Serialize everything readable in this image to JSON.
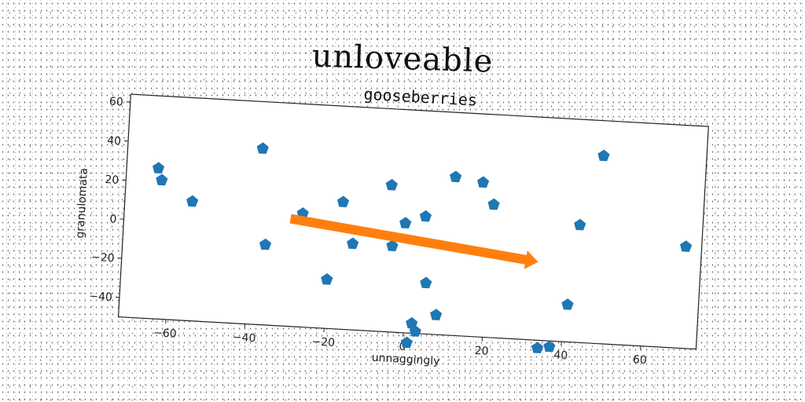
{
  "figure_title": "unloveable",
  "chart_data": {
    "type": "scatter",
    "title": "gooseberries",
    "xlabel": "unnaggingly",
    "ylabel": "granulomata",
    "xlim": [
      -72,
      74
    ],
    "ylim": [
      -50,
      64
    ],
    "xticks": [
      -60,
      -40,
      -20,
      0,
      20,
      40,
      60
    ],
    "yticks": [
      -40,
      -20,
      0,
      20,
      40,
      60
    ],
    "grid": false,
    "series": [
      {
        "marker": "pentagon",
        "color": "#1f77b4",
        "points": [
          [
            -64,
            27
          ],
          [
            -63,
            21
          ],
          [
            -55,
            11
          ],
          [
            -38,
            40
          ],
          [
            -36,
            -9
          ],
          [
            -27,
            8
          ],
          [
            -17,
            15
          ],
          [
            -20,
            -25
          ],
          [
            -14,
            -6
          ],
          [
            -5,
            25
          ],
          [
            -4,
            -6
          ],
          [
            -1,
            6
          ],
          [
            1,
            -55
          ],
          [
            2,
            -45
          ],
          [
            3,
            -49
          ],
          [
            4,
            10
          ],
          [
            5,
            -24
          ],
          [
            8,
            -40
          ],
          [
            11,
            31
          ],
          [
            18,
            29
          ],
          [
            21,
            18
          ],
          [
            34,
            -54
          ],
          [
            37,
            -53
          ],
          [
            41,
            -31
          ],
          [
            43,
            10
          ],
          [
            48,
            46
          ],
          [
            70,
            2
          ]
        ]
      },
      {
        "type": "arrow",
        "color": "#ff7f0e",
        "from": [
          -30,
          5
        ],
        "to": [
          33,
          -10
        ]
      }
    ]
  }
}
